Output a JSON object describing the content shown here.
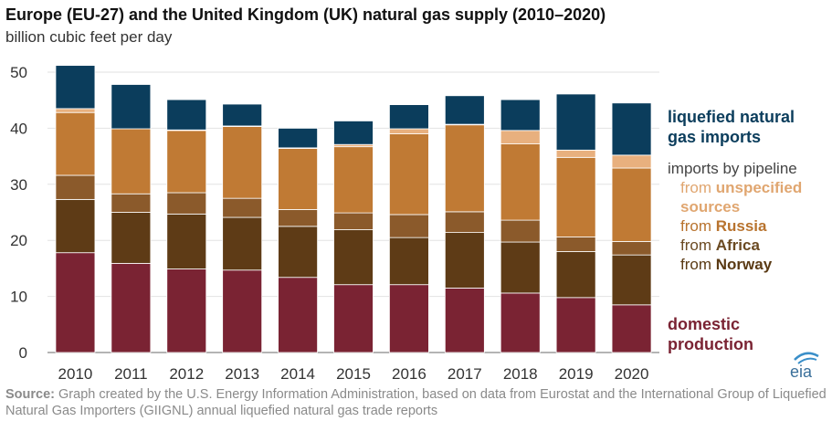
{
  "header": {
    "title": "Europe (EU-27) and the United Kingdom (UK) natural gas supply (2010–2020)",
    "subtitle": "billion cubic feet per day"
  },
  "legend": {
    "lng_line1": "liquefied natural",
    "lng_line2": "gas imports",
    "pipeline_header": "imports by pipeline",
    "from": "from",
    "unspecified_line1": "unspecified",
    "unspecified_line2": "sources",
    "russia": "Russia",
    "africa": "Africa",
    "norway": "Norway",
    "domestic_line1": "domestic",
    "domestic_line2": "production"
  },
  "source": {
    "label": "Source:",
    "text": " Graph created by the U.S. Energy Information Administration, based on data from Eurostat and the International Group of Liquefied Natural Gas Importers (GIIGNL) annual liquefied natural gas trade reports"
  },
  "logo": {
    "text": "eia"
  },
  "colors": {
    "domestic": "#7a2333",
    "norway": "#5e3b16",
    "africa": "#8b5a2b",
    "russia": "#c07a34",
    "unspecified": "#e8b07e",
    "lng": "#0b3d5c"
  },
  "chart_data": {
    "type": "bar",
    "stacked": true,
    "title": "Europe (EU-27) and the United Kingdom (UK) natural gas supply (2010–2020)",
    "ylabel": "billion cubic feet per day",
    "ylim": [
      0,
      50
    ],
    "yticks": [
      0,
      10,
      20,
      30,
      40,
      50
    ],
    "categories": [
      "2010",
      "2011",
      "2012",
      "2013",
      "2014",
      "2015",
      "2016",
      "2017",
      "2018",
      "2019",
      "2020"
    ],
    "series": [
      {
        "name": "domestic production",
        "key": "domestic",
        "values": [
          17.8,
          15.9,
          14.9,
          14.7,
          13.4,
          12.1,
          12.1,
          11.5,
          10.6,
          9.8,
          8.5
        ]
      },
      {
        "name": "from Norway",
        "key": "norway",
        "values": [
          9.5,
          9.1,
          9.8,
          9.4,
          9.1,
          9.8,
          8.4,
          9.9,
          9.1,
          8.2,
          8.9
        ]
      },
      {
        "name": "from Africa",
        "key": "africa",
        "values": [
          4.3,
          3.3,
          3.8,
          3.4,
          3.0,
          3.0,
          4.1,
          3.7,
          3.9,
          2.6,
          2.4
        ]
      },
      {
        "name": "from Russia",
        "key": "russia",
        "values": [
          11.2,
          11.6,
          11.1,
          12.8,
          10.9,
          11.8,
          14.4,
          15.5,
          13.6,
          14.2,
          13.1
        ]
      },
      {
        "name": "from unspecified sources",
        "key": "unspecified",
        "values": [
          0.7,
          0.0,
          0.1,
          0.1,
          0.1,
          0.4,
          0.9,
          0.1,
          2.4,
          1.3,
          2.3
        ]
      },
      {
        "name": "liquefied natural gas imports",
        "key": "lng",
        "values": [
          7.7,
          7.9,
          5.4,
          3.9,
          3.5,
          4.2,
          4.3,
          5.1,
          5.5,
          10.0,
          9.3
        ]
      }
    ]
  }
}
